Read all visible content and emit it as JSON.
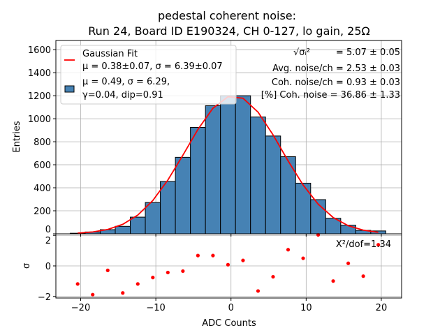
{
  "chart_data": {
    "type": "bar",
    "title_line1": "pedestal coherent noise:",
    "title_line2": "Run 24, Board ID E190324, CH 0-127, lo gain, 25Ω",
    "xlabel": "ADC Counts",
    "ylabel": "Entries",
    "residual_ylabel": "σ",
    "xlim": [
      -23.3,
      22.7
    ],
    "ylim": [
      0,
      1680
    ],
    "residual_ylim": [
      -2.1,
      2.1
    ],
    "xticks": [
      -20,
      -10,
      0,
      10,
      20
    ],
    "yticks": [
      0,
      200,
      400,
      600,
      800,
      1000,
      1200,
      1400,
      1600
    ],
    "residual_yticks": [
      -2,
      0,
      2
    ],
    "grid": true,
    "bin_width": 2,
    "bin_centers": [
      -20.4,
      -18.4,
      -16.4,
      -14.4,
      -12.4,
      -10.4,
      -8.4,
      -6.4,
      -4.4,
      -2.4,
      -0.4,
      1.6,
      3.6,
      5.6,
      7.6,
      9.6,
      11.6,
      13.6,
      15.6,
      17.6,
      19.6
    ],
    "counts": [
      5,
      16,
      36,
      65,
      145,
      272,
      455,
      665,
      925,
      1113,
      1200,
      1200,
      1015,
      850,
      670,
      440,
      297,
      135,
      75,
      30,
      25
    ],
    "fit": {
      "mu": 0.38,
      "sigma": 6.39,
      "peak": 1200
    },
    "residuals": [
      -1.18,
      -1.88,
      -0.29,
      -1.77,
      -1.18,
      -0.76,
      -0.43,
      -0.34,
      0.68,
      0.68,
      0.08,
      0.36,
      -1.64,
      -0.71,
      1.06,
      0.5,
      2.03,
      -0.99,
      0.17,
      -0.67,
      1.38
    ],
    "colors": {
      "bar": "#4682b4",
      "fit": "#ff0000",
      "residual": "#ff0000"
    },
    "legend": {
      "placement": "top-left",
      "fit_label": "Gaussian Fit",
      "fit_params": "μ = 0.38±0.07, σ = 6.39±0.07",
      "hist_line1": "μ = 0.49, σ = 6.29,",
      "hist_line2": "γ=0.04, dip=0.91"
    },
    "annotations": {
      "sigma_i_sym": "√σᵢ²",
      "sigma_i_val": "= 5.07 ± 0.05",
      "avg_noise": "Avg. noise/ch = 2.53 ± 0.03",
      "coh_noise": "Coh. noise/ch = 0.93 ± 0.03",
      "coh_pct": "[%] Coh. noise = 36.86  ± 1.33",
      "chi2": "X²/dof=1.34"
    }
  }
}
